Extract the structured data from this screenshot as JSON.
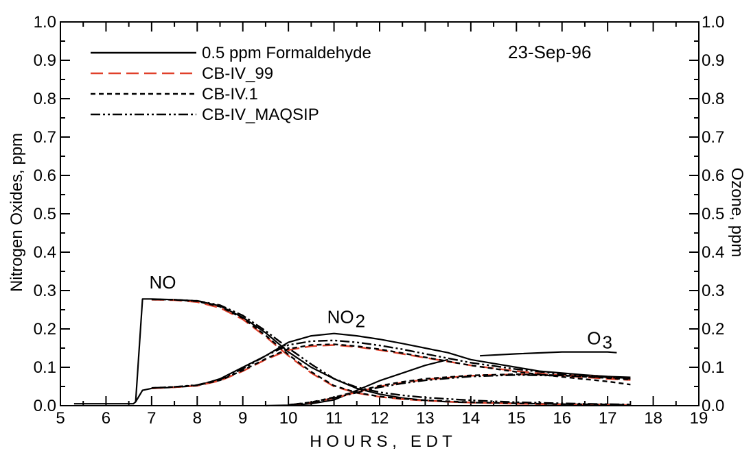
{
  "chart_data": {
    "type": "line",
    "date_label": "23-Sep-96",
    "xlabel": "H O U R S ,   E D T",
    "ylabel_left": "Nitrogen Oxides, ppm",
    "ylabel_right": "Ozone, ppm",
    "xlim": [
      5,
      19
    ],
    "ylim_left": [
      0,
      1.0
    ],
    "ylim_right": [
      0,
      1.0
    ],
    "x_ticks": [
      "5",
      "6",
      "7",
      "8",
      "9",
      "10",
      "11",
      "12",
      "13",
      "14",
      "15",
      "16",
      "17",
      "18",
      "19"
    ],
    "y_ticks_left": [
      "0.0",
      "0.1",
      "0.2",
      "0.3",
      "0.4",
      "0.5",
      "0.6",
      "0.7",
      "0.8",
      "0.9",
      "1.0"
    ],
    "y_ticks_right": [
      "0.0",
      "0.1",
      "0.2",
      "0.3",
      "0.4",
      "0.5",
      "0.6",
      "0.7",
      "0.8",
      "0.9",
      "1.0"
    ],
    "legend": [
      {
        "label": "0.5 ppm Formaldehyde",
        "style": "solid",
        "color": "#000000"
      },
      {
        "label": "CB-IV_99",
        "style": "dashed-long",
        "color": "#e0402a"
      },
      {
        "label": "CB-IV.1",
        "style": "dashed-short",
        "color": "#000000"
      },
      {
        "label": "CB-IV_MAQSIP",
        "style": "dash-dot-dot",
        "color": "#000000"
      }
    ],
    "annotations": [
      {
        "text": "NO",
        "x": 6.95,
        "y": 0.305
      },
      {
        "text": "NO",
        "subscript": "2",
        "x": 10.85,
        "y": 0.215
      },
      {
        "text": "O",
        "subscript": "3",
        "x": 16.55,
        "y": 0.16
      }
    ],
    "series": [
      {
        "name": "0.5 ppm Formaldehyde",
        "species": "NO",
        "style": "solid",
        "x": [
          5.3,
          5.8,
          6.3,
          6.6,
          6.65,
          6.8,
          7.0,
          7.5,
          8.0,
          8.5,
          9.0,
          9.5,
          10.0,
          10.5,
          11.0,
          11.5,
          12.0,
          12.5,
          13.0,
          13.5,
          14.0,
          15.0,
          16.0,
          17.2
        ],
        "y": [
          0.005,
          0.005,
          0.005,
          0.005,
          0.01,
          0.278,
          0.278,
          0.276,
          0.273,
          0.26,
          0.23,
          0.19,
          0.14,
          0.1,
          0.07,
          0.045,
          0.03,
          0.02,
          0.014,
          0.01,
          0.008,
          0.006,
          0.004,
          0.003
        ]
      },
      {
        "name": "0.5 ppm Formaldehyde",
        "species": "NO2",
        "style": "solid",
        "x": [
          6.65,
          6.8,
          7.0,
          7.5,
          8.0,
          8.5,
          9.0,
          9.5,
          10.0,
          10.5,
          11.0,
          11.5,
          12.0,
          12.5,
          13.0,
          13.5,
          14.0,
          14.5,
          15.0,
          15.5,
          16.0,
          16.5,
          17.0,
          17.5
        ],
        "y": [
          0.01,
          0.04,
          0.045,
          0.048,
          0.052,
          0.07,
          0.1,
          0.13,
          0.165,
          0.182,
          0.188,
          0.182,
          0.173,
          0.162,
          0.15,
          0.138,
          0.12,
          0.11,
          0.1,
          0.09,
          0.085,
          0.08,
          0.076,
          0.074
        ]
      },
      {
        "name": "0.5 ppm Formaldehyde",
        "species": "O3",
        "style": "solid",
        "x": [
          9.5,
          10.0,
          10.5,
          11.0,
          11.5,
          12.0,
          12.5,
          13.0,
          13.5
        ],
        "y": [
          0.0,
          0.001,
          0.005,
          0.015,
          0.04,
          0.065,
          0.085,
          0.105,
          0.12
        ]
      },
      {
        "name": "0.5 ppm Formaldehyde",
        "species": "O3",
        "style": "solid",
        "x": [
          14.2,
          15.0,
          16.0,
          17.0,
          17.2
        ],
        "y": [
          0.13,
          0.135,
          0.14,
          0.14,
          0.138
        ]
      },
      {
        "name": "CB-IV_99",
        "species": "NO",
        "style": "dashed-long",
        "x": [
          7.0,
          7.5,
          8.0,
          8.5,
          9.0,
          9.5,
          10.0,
          10.5,
          11.0,
          11.5,
          12.0,
          12.5,
          13.0,
          14.0,
          15.0,
          16.0,
          17.0,
          17.5
        ],
        "y": [
          0.276,
          0.275,
          0.27,
          0.255,
          0.225,
          0.18,
          0.13,
          0.085,
          0.05,
          0.033,
          0.023,
          0.017,
          0.013,
          0.008,
          0.005,
          0.003,
          0.002,
          0.002
        ]
      },
      {
        "name": "CB-IV_99",
        "species": "NO2",
        "style": "dashed-long",
        "x": [
          7.0,
          7.5,
          8.0,
          8.5,
          9.0,
          9.5,
          10.0,
          10.5,
          11.0,
          11.5,
          12.0,
          12.5,
          13.0,
          14.0,
          15.0,
          16.0,
          17.0,
          17.5
        ],
        "y": [
          0.045,
          0.048,
          0.052,
          0.065,
          0.09,
          0.12,
          0.145,
          0.155,
          0.158,
          0.153,
          0.145,
          0.135,
          0.125,
          0.105,
          0.09,
          0.078,
          0.07,
          0.067
        ]
      },
      {
        "name": "CB-IV_99",
        "species": "O3",
        "style": "dashed-long",
        "x": [
          10.0,
          10.5,
          11.0,
          11.5,
          12.0,
          12.5,
          13.0,
          14.0,
          15.0,
          16.0,
          17.0,
          17.5
        ],
        "y": [
          0.002,
          0.008,
          0.02,
          0.035,
          0.05,
          0.06,
          0.068,
          0.078,
          0.082,
          0.08,
          0.074,
          0.07
        ]
      },
      {
        "name": "CB-IV.1",
        "species": "NO",
        "style": "dashed-short",
        "x": [
          7.0,
          7.5,
          8.0,
          8.5,
          9.0,
          9.5,
          10.0,
          10.5,
          11.0,
          11.5,
          12.0,
          12.5,
          13.0,
          14.0,
          15.0,
          16.0,
          17.0,
          17.5
        ],
        "y": [
          0.277,
          0.276,
          0.272,
          0.258,
          0.228,
          0.183,
          0.133,
          0.088,
          0.052,
          0.034,
          0.024,
          0.018,
          0.014,
          0.009,
          0.006,
          0.004,
          0.003,
          0.002
        ]
      },
      {
        "name": "CB-IV.1",
        "species": "NO2",
        "style": "dashed-short",
        "x": [
          7.0,
          7.5,
          8.0,
          8.5,
          9.0,
          9.5,
          10.0,
          10.5,
          11.0,
          11.5,
          12.0,
          12.5,
          13.0,
          14.0,
          15.0,
          16.0,
          17.0,
          17.5
        ],
        "y": [
          0.046,
          0.049,
          0.053,
          0.066,
          0.092,
          0.122,
          0.148,
          0.158,
          0.16,
          0.155,
          0.147,
          0.137,
          0.126,
          0.105,
          0.088,
          0.075,
          0.063,
          0.055
        ]
      },
      {
        "name": "CB-IV.1",
        "species": "O3",
        "style": "dashed-short",
        "x": [
          10.0,
          10.5,
          11.0,
          11.5,
          12.0,
          12.5,
          13.0,
          14.0,
          15.0,
          16.0,
          17.0,
          17.5
        ],
        "y": [
          0.002,
          0.009,
          0.022,
          0.037,
          0.052,
          0.062,
          0.07,
          0.079,
          0.082,
          0.079,
          0.072,
          0.068
        ]
      },
      {
        "name": "CB-IV_MAQSIP",
        "species": "NO",
        "style": "dash-dot-dot",
        "x": [
          7.0,
          7.5,
          8.0,
          8.5,
          9.0,
          9.5,
          10.0,
          10.5,
          11.0,
          11.5,
          12.0,
          12.5,
          13.0,
          14.0,
          15.0,
          16.0,
          17.0,
          17.5
        ],
        "y": [
          0.277,
          0.276,
          0.273,
          0.262,
          0.235,
          0.195,
          0.15,
          0.108,
          0.07,
          0.048,
          0.035,
          0.027,
          0.021,
          0.014,
          0.009,
          0.006,
          0.004,
          0.003
        ]
      },
      {
        "name": "CB-IV_MAQSIP",
        "species": "NO2",
        "style": "dash-dot-dot",
        "x": [
          7.0,
          7.5,
          8.0,
          8.5,
          9.0,
          9.5,
          10.0,
          10.5,
          11.0,
          11.5,
          12.0,
          12.5,
          13.0,
          14.0,
          15.0,
          16.0,
          17.0,
          17.5
        ],
        "y": [
          0.046,
          0.049,
          0.054,
          0.068,
          0.096,
          0.13,
          0.158,
          0.168,
          0.17,
          0.165,
          0.157,
          0.147,
          0.135,
          0.112,
          0.095,
          0.082,
          0.074,
          0.07
        ]
      },
      {
        "name": "CB-IV_MAQSIP",
        "species": "O3",
        "style": "dash-dot-dot",
        "x": [
          10.0,
          10.5,
          11.0,
          11.5,
          12.0,
          12.5,
          13.0,
          14.0,
          15.0,
          16.0,
          17.0,
          17.5
        ],
        "y": [
          0.002,
          0.008,
          0.02,
          0.034,
          0.048,
          0.058,
          0.066,
          0.076,
          0.08,
          0.078,
          0.074,
          0.072
        ]
      }
    ]
  }
}
